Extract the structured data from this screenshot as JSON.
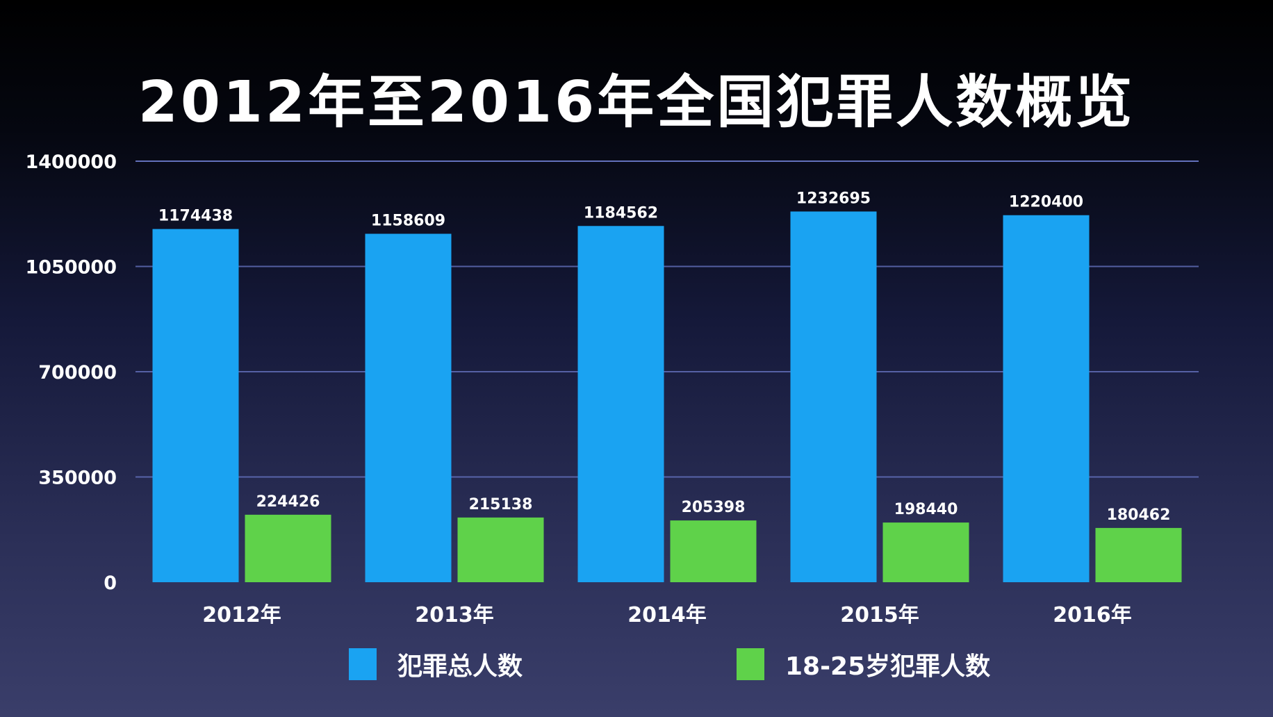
{
  "colors": {
    "series_total": "#1aa3f2",
    "series_youth": "#5fd24a",
    "gridline": "#6a78c8"
  },
  "chart_data": {
    "type": "bar",
    "title": "2012年至2016年全国犯罪人数概览",
    "categories": [
      "2012年",
      "2013年",
      "2014年",
      "2015年",
      "2016年"
    ],
    "series": [
      {
        "name": "犯罪总人数",
        "values": [
          1174438,
          1158609,
          1184562,
          1232695,
          1220400
        ]
      },
      {
        "name": "18-25岁犯罪人数",
        "values": [
          224426,
          215138,
          205398,
          198440,
          180462
        ]
      }
    ],
    "data_labels": [
      [
        "1174438",
        "224426"
      ],
      [
        "1158609",
        "215138"
      ],
      [
        "1184562",
        "205398"
      ],
      [
        "1232695",
        "198440"
      ],
      [
        "1220400",
        "180462"
      ]
    ],
    "yticks": [
      0,
      350000,
      700000,
      1050000,
      1400000
    ],
    "ytick_labels": [
      "0",
      "350000",
      "700000",
      "1050000",
      "1400000"
    ],
    "ylim": [
      0,
      1400000
    ],
    "grid": true,
    "legend_position": "bottom"
  }
}
